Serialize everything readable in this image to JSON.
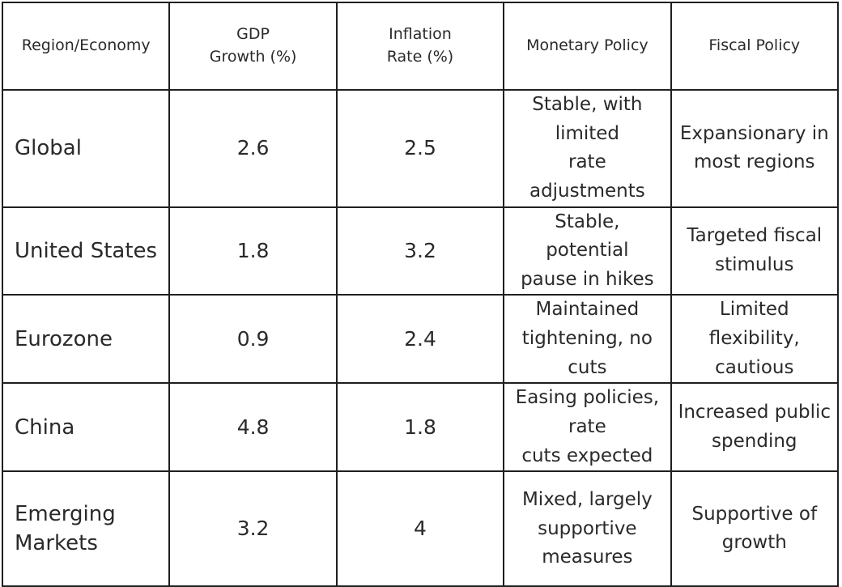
{
  "table": {
    "headers": [
      "Region/Economy",
      "GDP Growth (%)",
      "Inflation Rate (%)",
      "Monetary Policy",
      "Fiscal Policy"
    ],
    "header_lines": [
      [
        "Region/Economy"
      ],
      [
        "GDP",
        "Growth (%)"
      ],
      [
        "Inflation",
        "Rate (%)"
      ],
      [
        "Monetary Policy"
      ],
      [
        "Fiscal Policy"
      ]
    ],
    "rows": [
      {
        "region": [
          "Global"
        ],
        "gdp": "2.6",
        "inflation": "2.5",
        "monetary": [
          "Stable, with limited",
          "rate adjustments"
        ],
        "fiscal": [
          "Expansionary in",
          "most regions"
        ]
      },
      {
        "region": [
          "United States"
        ],
        "gdp": "1.8",
        "inflation": "3.2",
        "monetary": [
          "Stable, potential",
          "pause in hikes"
        ],
        "fiscal": [
          "Targeted fiscal",
          "stimulus"
        ]
      },
      {
        "region": [
          "Eurozone"
        ],
        "gdp": "0.9",
        "inflation": "2.4",
        "monetary": [
          "Maintained",
          "tightening, no cuts"
        ],
        "fiscal": [
          "Limited flexibility,",
          "cautious"
        ]
      },
      {
        "region": [
          "China"
        ],
        "gdp": "4.8",
        "inflation": "1.8",
        "monetary": [
          "Easing policies, rate",
          "cuts expected"
        ],
        "fiscal": [
          "Increased public",
          "spending"
        ]
      },
      {
        "region": [
          "Emerging",
          "Markets"
        ],
        "gdp": "3.2",
        "inflation": "4",
        "monetary": [
          "Mixed, largely",
          "supportive measures"
        ],
        "fiscal": [
          "Supportive of",
          "growth"
        ]
      }
    ]
  }
}
